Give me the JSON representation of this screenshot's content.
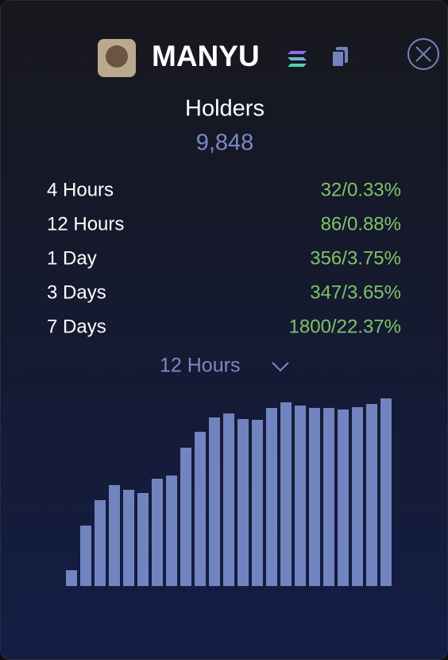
{
  "header": {
    "title": "MANYU"
  },
  "holders": {
    "label": "Holders",
    "count": "9,848"
  },
  "stats": {
    "rows": [
      [
        "4 Hours",
        "32/0.33%"
      ],
      [
        "12 Hours",
        "86/0.88%"
      ],
      [
        "1 Day",
        "356/3.75%"
      ],
      [
        "3 Days",
        "347/3.65%"
      ],
      [
        "7 Days",
        "1800/22.37%"
      ]
    ]
  },
  "dropdown": {
    "selected": "12 Hours"
  },
  "chart_data": {
    "type": "bar",
    "color": "#7284c0",
    "values": [
      20,
      76,
      108,
      127,
      121,
      117,
      135,
      139,
      174,
      194,
      212,
      217,
      210,
      209,
      224,
      231,
      227,
      224,
      224,
      222,
      225,
      229,
      236
    ]
  }
}
